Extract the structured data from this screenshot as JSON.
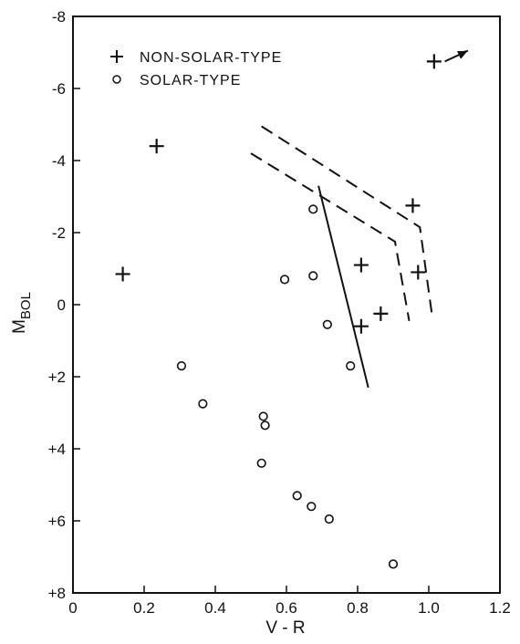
{
  "chart_data": {
    "type": "scatter",
    "xlabel": "V - R",
    "ylabel": "M",
    "ylabel_sub": "BOL",
    "xlim": [
      0,
      1.2
    ],
    "ylim": [
      -8,
      8
    ],
    "y_inverted": true,
    "grid": false,
    "legend_placement": "top-left",
    "x_ticks": [
      "0",
      "0.2",
      "0.4",
      "0.6",
      "0.8",
      "1.0",
      "1.2"
    ],
    "y_ticks": [
      "-8",
      "-6",
      "-4",
      "-2",
      "0",
      "+2",
      "+4",
      "+6",
      "+8"
    ],
    "series": [
      {
        "name": "NON-SOLAR-TYPE",
        "marker": "plus",
        "points": [
          {
            "x": 0.14,
            "y": -0.85
          },
          {
            "x": 0.235,
            "y": -4.4
          },
          {
            "x": 0.81,
            "y": -1.1
          },
          {
            "x": 0.81,
            "y": 0.6
          },
          {
            "x": 0.865,
            "y": 0.25
          },
          {
            "x": 0.955,
            "y": -2.75
          },
          {
            "x": 0.97,
            "y": -0.9
          },
          {
            "x": 1.015,
            "y": -6.75
          }
        ]
      },
      {
        "name": "SOLAR-TYPE",
        "marker": "circle",
        "points": [
          {
            "x": 0.305,
            "y": 1.7
          },
          {
            "x": 0.365,
            "y": 2.75
          },
          {
            "x": 0.53,
            "y": 4.4
          },
          {
            "x": 0.535,
            "y": 3.1
          },
          {
            "x": 0.54,
            "y": 3.35
          },
          {
            "x": 0.595,
            "y": -0.7
          },
          {
            "x": 0.63,
            "y": 5.3
          },
          {
            "x": 0.67,
            "y": 5.6
          },
          {
            "x": 0.675,
            "y": -0.8
          },
          {
            "x": 0.675,
            "y": -2.65
          },
          {
            "x": 0.715,
            "y": 0.55
          },
          {
            "x": 0.72,
            "y": 5.95
          },
          {
            "x": 0.78,
            "y": 1.7
          },
          {
            "x": 0.9,
            "y": 7.2
          }
        ]
      }
    ],
    "lines": [
      {
        "style": "solid",
        "points": [
          [
            0.69,
            -3.3
          ],
          [
            0.83,
            2.3
          ]
        ]
      },
      {
        "style": "dashed",
        "points": [
          [
            0.5,
            -4.2
          ],
          [
            0.905,
            -1.75
          ],
          [
            0.945,
            0.45
          ]
        ]
      },
      {
        "style": "dashed",
        "points": [
          [
            0.53,
            -4.95
          ],
          [
            0.975,
            -2.15
          ],
          [
            1.01,
            0.35
          ]
        ]
      }
    ],
    "annotations": [
      {
        "type": "arrow",
        "from": [
          1.045,
          -6.75
        ],
        "to": [
          1.11,
          -7.05
        ]
      }
    ]
  }
}
